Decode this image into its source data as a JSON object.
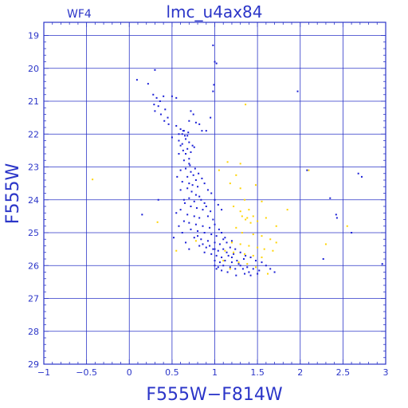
{
  "chart_data": {
    "type": "scatter",
    "panel_label": "WF4",
    "title": "lmc_u4ax84",
    "xlabel": "F555W−F814W",
    "ylabel": "F555W",
    "xlim": [
      -1,
      3
    ],
    "ylim": [
      29,
      18.6
    ],
    "y_inverted": true,
    "grid": true,
    "x_ticks": [
      {
        "value": -1,
        "label": "−1"
      },
      {
        "value": -0.5,
        "label": "−0.5"
      },
      {
        "value": 0,
        "label": "0"
      },
      {
        "value": 0.5,
        "label": "0.5"
      },
      {
        "value": 1,
        "label": "1"
      },
      {
        "value": 1.5,
        "label": "1.5"
      },
      {
        "value": 2,
        "label": "2"
      },
      {
        "value": 2.5,
        "label": "2.5"
      },
      {
        "value": 3,
        "label": "3"
      }
    ],
    "y_ticks": [
      {
        "value": 19,
        "label": "19"
      },
      {
        "value": 20,
        "label": "20"
      },
      {
        "value": 21,
        "label": "21"
      },
      {
        "value": 22,
        "label": "22"
      },
      {
        "value": 23,
        "label": "23"
      },
      {
        "value": 24,
        "label": "24"
      },
      {
        "value": 25,
        "label": "25"
      },
      {
        "value": 26,
        "label": "26"
      },
      {
        "value": 27,
        "label": "27"
      },
      {
        "value": 28,
        "label": "28"
      },
      {
        "value": 29,
        "label": "29"
      }
    ],
    "colors": {
      "axes": "#2b35c8",
      "grid": "#2b35c8",
      "stars": "#1a1fd6",
      "faint_stars": "#ffd400"
    },
    "series": [
      {
        "color_key": "stars",
        "points": [
          [
            0.09,
            20.35
          ],
          [
            0.3,
            20.05
          ],
          [
            0.22,
            20.47
          ],
          [
            0.28,
            20.8
          ],
          [
            0.32,
            20.9
          ],
          [
            0.36,
            21.0
          ],
          [
            0.29,
            21.1
          ],
          [
            0.4,
            20.85
          ],
          [
            0.34,
            21.15
          ],
          [
            0.3,
            21.3
          ],
          [
            0.42,
            21.25
          ],
          [
            0.37,
            21.4
          ],
          [
            0.45,
            21.5
          ],
          [
            0.5,
            20.85
          ],
          [
            0.55,
            20.9
          ],
          [
            0.41,
            21.6
          ],
          [
            0.46,
            21.7
          ],
          [
            0.55,
            21.75
          ],
          [
            0.6,
            21.85
          ],
          [
            0.58,
            22.0
          ],
          [
            0.5,
            22.1
          ],
          [
            0.63,
            21.9
          ],
          [
            0.65,
            22.05
          ],
          [
            0.69,
            21.95
          ],
          [
            0.7,
            21.6
          ],
          [
            0.72,
            21.3
          ],
          [
            0.75,
            21.4
          ],
          [
            0.78,
            21.65
          ],
          [
            0.82,
            21.7
          ],
          [
            0.9,
            21.9
          ],
          [
            0.95,
            21.5
          ],
          [
            0.85,
            21.9
          ],
          [
            0.58,
            22.2
          ],
          [
            0.6,
            22.35
          ],
          [
            0.63,
            22.5
          ],
          [
            0.66,
            22.6
          ],
          [
            0.7,
            22.75
          ],
          [
            0.62,
            22.3
          ],
          [
            0.68,
            22.45
          ],
          [
            0.72,
            22.55
          ],
          [
            0.58,
            22.6
          ],
          [
            0.64,
            22.8
          ],
          [
            0.7,
            22.9
          ],
          [
            0.66,
            23.05
          ],
          [
            0.72,
            23.15
          ],
          [
            0.75,
            23.25
          ],
          [
            0.68,
            23.3
          ],
          [
            0.62,
            23.45
          ],
          [
            0.7,
            23.5
          ],
          [
            0.78,
            23.4
          ],
          [
            0.74,
            23.55
          ],
          [
            0.8,
            23.6
          ],
          [
            0.68,
            23.65
          ],
          [
            0.73,
            23.75
          ],
          [
            0.78,
            23.85
          ],
          [
            0.82,
            23.9
          ],
          [
            0.7,
            23.95
          ],
          [
            0.76,
            24.05
          ],
          [
            0.84,
            24.0
          ],
          [
            0.88,
            24.1
          ],
          [
            0.65,
            24.1
          ],
          [
            0.72,
            24.2
          ],
          [
            0.79,
            24.25
          ],
          [
            0.86,
            24.3
          ],
          [
            0.9,
            24.2
          ],
          [
            0.95,
            24.35
          ],
          [
            0.6,
            24.3
          ],
          [
            0.68,
            24.45
          ],
          [
            0.76,
            24.5
          ],
          [
            0.82,
            24.55
          ],
          [
            0.92,
            24.5
          ],
          [
            0.98,
            24.6
          ],
          [
            0.64,
            24.65
          ],
          [
            0.7,
            24.7
          ],
          [
            0.78,
            24.75
          ],
          [
            0.86,
            24.8
          ],
          [
            0.94,
            24.85
          ],
          [
            1.0,
            24.75
          ],
          [
            1.05,
            24.9
          ],
          [
            0.72,
            24.9
          ],
          [
            0.8,
            24.95
          ],
          [
            0.88,
            25.0
          ],
          [
            0.96,
            25.05
          ],
          [
            1.02,
            25.1
          ],
          [
            1.08,
            25.0
          ],
          [
            1.12,
            25.15
          ],
          [
            0.76,
            25.15
          ],
          [
            0.84,
            25.2
          ],
          [
            0.92,
            25.25
          ],
          [
            1.0,
            25.3
          ],
          [
            1.06,
            25.35
          ],
          [
            1.14,
            25.3
          ],
          [
            1.2,
            25.25
          ],
          [
            0.82,
            25.4
          ],
          [
            0.9,
            25.45
          ],
          [
            0.98,
            25.5
          ],
          [
            1.04,
            25.55
          ],
          [
            1.1,
            25.5
          ],
          [
            1.18,
            25.45
          ],
          [
            1.24,
            25.5
          ],
          [
            0.88,
            25.6
          ],
          [
            0.96,
            25.65
          ],
          [
            1.02,
            25.7
          ],
          [
            1.08,
            25.75
          ],
          [
            1.16,
            25.7
          ],
          [
            1.22,
            25.65
          ],
          [
            1.3,
            25.6
          ],
          [
            1.36,
            25.7
          ],
          [
            1.0,
            25.85
          ],
          [
            1.06,
            25.9
          ],
          [
            1.12,
            25.85
          ],
          [
            1.2,
            25.9
          ],
          [
            1.26,
            25.85
          ],
          [
            1.34,
            25.8
          ],
          [
            1.42,
            25.75
          ],
          [
            1.48,
            25.85
          ],
          [
            1.55,
            25.9
          ],
          [
            1.6,
            26.0
          ],
          [
            1.65,
            26.1
          ],
          [
            1.7,
            26.2
          ],
          [
            1.1,
            26.0
          ],
          [
            1.18,
            26.05
          ],
          [
            1.24,
            26.1
          ],
          [
            1.3,
            26.0
          ],
          [
            1.38,
            26.05
          ],
          [
            1.45,
            26.1
          ],
          [
            1.52,
            26.15
          ],
          [
            1.0,
            26.0
          ],
          [
            1.04,
            26.05
          ],
          [
            1.15,
            26.2
          ],
          [
            1.25,
            26.3
          ],
          [
            1.35,
            26.25
          ],
          [
            1.42,
            26.3
          ],
          [
            1.5,
            26.25
          ],
          [
            0.15,
            24.45
          ],
          [
            0.34,
            24.0
          ],
          [
            0.55,
            24.4
          ],
          [
            0.52,
            25.15
          ],
          [
            0.98,
            19.3
          ],
          [
            1.0,
            19.8
          ],
          [
            1.02,
            19.85
          ],
          [
            0.99,
            20.5
          ],
          [
            0.98,
            20.7
          ],
          [
            1.97,
            20.7
          ],
          [
            2.08,
            23.1
          ],
          [
            2.68,
            23.2
          ],
          [
            2.72,
            23.3
          ],
          [
            2.35,
            23.95
          ],
          [
            2.42,
            24.45
          ],
          [
            2.43,
            24.55
          ],
          [
            2.6,
            25.0
          ],
          [
            2.27,
            25.8
          ],
          [
            2.96,
            25.95
          ],
          [
            0.62,
            22.0
          ],
          [
            0.66,
            22.15
          ],
          [
            0.7,
            22.25
          ],
          [
            0.74,
            22.35
          ],
          [
            0.68,
            22.05
          ],
          [
            0.64,
            21.9
          ],
          [
            0.76,
            22.4
          ],
          [
            0.71,
            22.95
          ],
          [
            0.77,
            23.05
          ],
          [
            0.81,
            23.2
          ],
          [
            0.85,
            23.35
          ],
          [
            0.88,
            23.5
          ],
          [
            0.92,
            23.7
          ],
          [
            0.96,
            23.8
          ],
          [
            1.0,
            24.0
          ],
          [
            1.04,
            24.15
          ],
          [
            1.08,
            24.3
          ],
          [
            0.6,
            23.1
          ],
          [
            0.56,
            23.3
          ],
          [
            0.6,
            23.7
          ],
          [
            0.64,
            24.0
          ],
          [
            0.58,
            24.8
          ],
          [
            0.62,
            25.0
          ],
          [
            0.66,
            25.3
          ],
          [
            0.7,
            25.5
          ],
          [
            1.02,
            26.1
          ],
          [
            1.08,
            26.15
          ],
          [
            1.14,
            25.6
          ],
          [
            1.2,
            25.75
          ],
          [
            1.28,
            25.95
          ],
          [
            1.33,
            26.1
          ],
          [
            1.4,
            26.2
          ],
          [
            0.8,
            25.1
          ],
          [
            0.86,
            25.35
          ],
          [
            0.94,
            25.4
          ],
          [
            1.0,
            25.5
          ],
          [
            1.1,
            25.2
          ]
        ]
      },
      {
        "color_key": "faint_stars",
        "points": [
          [
            -0.43,
            23.38
          ],
          [
            0.33,
            24.68
          ],
          [
            1.36,
            21.1
          ],
          [
            1.15,
            22.85
          ],
          [
            1.3,
            22.9
          ],
          [
            1.05,
            23.1
          ],
          [
            1.25,
            23.25
          ],
          [
            1.18,
            23.5
          ],
          [
            1.3,
            23.65
          ],
          [
            1.48,
            23.55
          ],
          [
            1.35,
            24.0
          ],
          [
            1.55,
            24.05
          ],
          [
            1.22,
            24.2
          ],
          [
            1.3,
            24.35
          ],
          [
            1.4,
            24.3
          ],
          [
            1.32,
            24.5
          ],
          [
            1.38,
            24.55
          ],
          [
            1.45,
            24.5
          ],
          [
            1.36,
            24.6
          ],
          [
            1.42,
            24.7
          ],
          [
            1.5,
            24.65
          ],
          [
            1.6,
            24.55
          ],
          [
            1.85,
            24.3
          ],
          [
            1.72,
            24.8
          ],
          [
            1.25,
            24.85
          ],
          [
            1.32,
            25.0
          ],
          [
            1.45,
            25.05
          ],
          [
            1.55,
            25.1
          ],
          [
            1.65,
            25.2
          ],
          [
            1.72,
            25.3
          ],
          [
            1.2,
            25.3
          ],
          [
            1.3,
            25.35
          ],
          [
            1.4,
            25.4
          ],
          [
            1.5,
            25.45
          ],
          [
            1.58,
            25.5
          ],
          [
            1.68,
            25.55
          ],
          [
            1.12,
            25.55
          ],
          [
            1.22,
            25.6
          ],
          [
            1.35,
            25.65
          ],
          [
            1.45,
            25.7
          ],
          [
            1.55,
            25.75
          ],
          [
            1.1,
            25.85
          ],
          [
            1.28,
            25.9
          ],
          [
            1.38,
            25.95
          ],
          [
            1.18,
            26.1
          ],
          [
            2.1,
            23.1
          ],
          [
            2.3,
            25.35
          ],
          [
            2.55,
            24.8
          ],
          [
            0.78,
            25.25
          ],
          [
            0.55,
            25.55
          ],
          [
            1.62,
            26.25
          ],
          [
            1.48,
            26.05
          ]
        ]
      }
    ]
  }
}
